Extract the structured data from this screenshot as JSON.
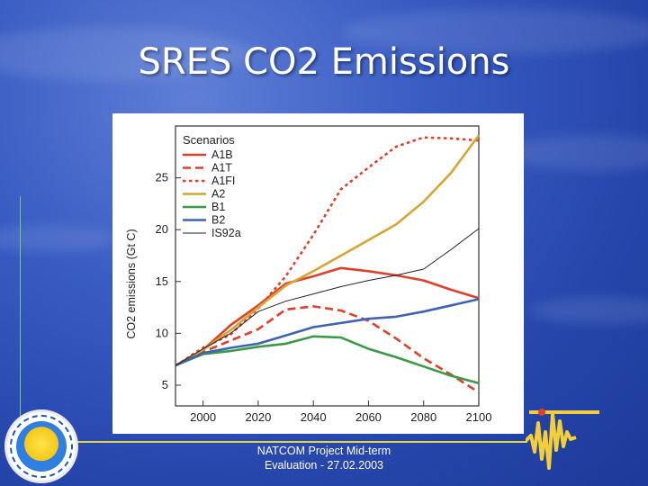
{
  "slide": {
    "title": "SRES CO2 Emissions",
    "footer_line1": "NATCOM Project Mid-term",
    "footer_line2": "Evaluation - 27.02.2003"
  },
  "chart_data": {
    "type": "line",
    "title": "",
    "xlabel": "",
    "ylabel": "CO2 emissions (Gt C)",
    "xlim": [
      1990,
      2100
    ],
    "ylim": [
      3,
      30
    ],
    "xticks": [
      2000,
      2020,
      2040,
      2060,
      2080,
      2100
    ],
    "yticks": [
      5,
      10,
      15,
      20,
      25
    ],
    "grid": false,
    "legend": {
      "title": "Scenarios",
      "placement": "top-left"
    },
    "series": [
      {
        "name": "A1B",
        "color": "#e0402a",
        "dash": "solid",
        "x": [
          1990,
          2000,
          2010,
          2020,
          2030,
          2040,
          2050,
          2060,
          2070,
          2080,
          2090,
          2100
        ],
        "y": [
          6.9,
          8.4,
          10.8,
          12.7,
          14.8,
          15.5,
          16.3,
          16.0,
          15.6,
          15.1,
          14.2,
          13.4
        ]
      },
      {
        "name": "A1T",
        "color": "#e0402a",
        "dash": "long",
        "x": [
          1990,
          2000,
          2010,
          2020,
          2030,
          2040,
          2050,
          2060,
          2070,
          2080,
          2090,
          2100
        ],
        "y": [
          6.9,
          8.2,
          9.3,
          10.4,
          12.3,
          12.6,
          12.2,
          11.2,
          9.5,
          7.6,
          6.0,
          4.3
        ]
      },
      {
        "name": "A1FI",
        "color": "#e0402a",
        "dash": "short",
        "x": [
          1990,
          2000,
          2010,
          2020,
          2030,
          2040,
          2050,
          2060,
          2070,
          2080,
          2090,
          2100
        ],
        "y": [
          6.9,
          8.6,
          9.9,
          12.4,
          15.5,
          19.5,
          23.9,
          26.0,
          28.0,
          28.9,
          28.8,
          28.6
        ]
      },
      {
        "name": "A2",
        "color": "#d9a532",
        "dash": "solid",
        "x": [
          1990,
          2000,
          2010,
          2020,
          2030,
          2040,
          2050,
          2060,
          2070,
          2080,
          2090,
          2100
        ],
        "y": [
          6.9,
          8.4,
          10.3,
          12.5,
          14.6,
          16.0,
          17.5,
          19.0,
          20.5,
          22.7,
          25.5,
          29.1
        ]
      },
      {
        "name": "B1",
        "color": "#3a9a45",
        "dash": "solid",
        "x": [
          1990,
          2000,
          2010,
          2020,
          2030,
          2040,
          2050,
          2060,
          2070,
          2080,
          2090,
          2100
        ],
        "y": [
          6.9,
          8.0,
          8.3,
          8.7,
          9.0,
          9.7,
          9.6,
          8.5,
          7.7,
          6.8,
          5.9,
          5.2
        ]
      },
      {
        "name": "B2",
        "color": "#3f63b0",
        "dash": "solid",
        "x": [
          1990,
          2000,
          2010,
          2020,
          2030,
          2040,
          2050,
          2060,
          2070,
          2080,
          2090,
          2100
        ],
        "y": [
          6.9,
          8.1,
          8.6,
          9.0,
          9.8,
          10.6,
          11.0,
          11.4,
          11.6,
          12.1,
          12.7,
          13.3
        ]
      },
      {
        "name": "IS92a",
        "color": "#222222",
        "dash": "thin",
        "x": [
          1990,
          2000,
          2010,
          2020,
          2030,
          2040,
          2050,
          2060,
          2070,
          2080,
          2090,
          2100
        ],
        "y": [
          6.9,
          8.5,
          10.0,
          12.1,
          13.1,
          13.8,
          14.5,
          15.1,
          15.6,
          16.2,
          18.1,
          20.1
        ]
      }
    ]
  }
}
